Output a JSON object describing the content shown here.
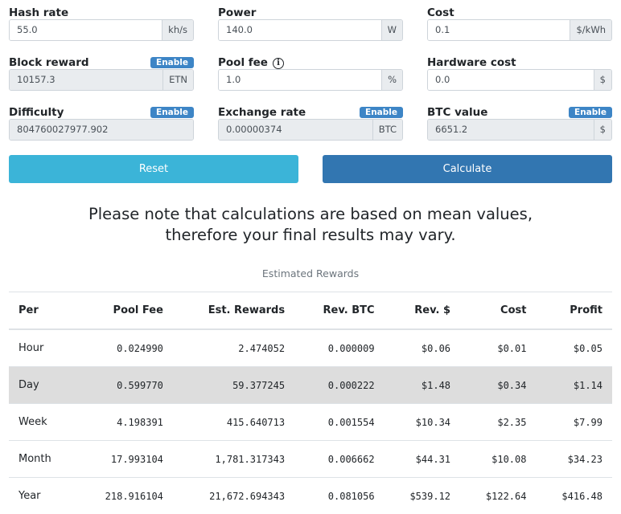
{
  "fields": [
    {
      "label": "Hash rate",
      "value": "55.0",
      "unit": "kh/s",
      "disabled": false
    },
    {
      "label": "Power",
      "value": "140.0",
      "unit": "W",
      "disabled": false
    },
    {
      "label": "Cost",
      "value": "0.1",
      "unit": "$/kWh",
      "disabled": false
    },
    {
      "label": "Block reward",
      "value": "10157.3",
      "unit": "ETN",
      "disabled": true,
      "badge": "Enable"
    },
    {
      "label": "Pool fee",
      "value": "1.0",
      "unit": "%",
      "disabled": false,
      "info": "i"
    },
    {
      "label": "Hardware cost",
      "value": "0.0",
      "unit": "$",
      "disabled": false
    },
    {
      "label": "Difficulty",
      "value": "804760027977.902",
      "unit": "",
      "disabled": true,
      "badge": "Enable"
    },
    {
      "label": "Exchange rate",
      "value": "0.00000374",
      "unit": "BTC",
      "disabled": true,
      "badge": "Enable"
    },
    {
      "label": "BTC value",
      "value": "6651.2",
      "unit": "$",
      "disabled": true,
      "badge": "Enable"
    }
  ],
  "buttons": {
    "reset": "Reset",
    "calculate": "Calculate",
    "reset_color": "#3bb4d8",
    "calculate_color": "#3276b1"
  },
  "note": {
    "line1": "Please note that calculations are based on mean values,",
    "line2": "therefore your final results may vary."
  },
  "table": {
    "caption": "Estimated Rewards",
    "headers": [
      "Per",
      "Pool Fee",
      "Est. Rewards",
      "Rev. BTC",
      "Rev. $",
      "Cost",
      "Profit"
    ],
    "rows": [
      [
        "Hour",
        "0.024990",
        "2.474052",
        "0.000009",
        "$0.06",
        "$0.01",
        "$0.05"
      ],
      [
        "Day",
        "0.599770",
        "59.377245",
        "0.000222",
        "$1.48",
        "$0.34",
        "$1.14"
      ],
      [
        "Week",
        "4.198391",
        "415.640713",
        "0.001554",
        "$10.34",
        "$2.35",
        "$7.99"
      ],
      [
        "Month",
        "17.993104",
        "1,781.317343",
        "0.006662",
        "$44.31",
        "$10.08",
        "$34.23"
      ],
      [
        "Year",
        "218.916104",
        "21,672.694343",
        "0.081056",
        "$539.12",
        "$122.64",
        "$416.48"
      ]
    ],
    "highlighted_row": 1
  }
}
